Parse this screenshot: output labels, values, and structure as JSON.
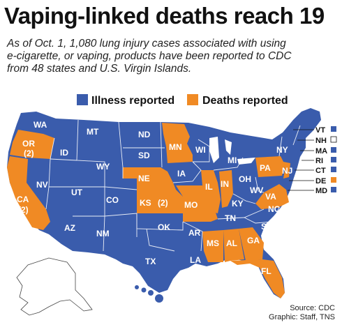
{
  "title": "Vaping-linked deaths reach 19",
  "subtitle": [
    "As of Oct. 1, 1,080 lung injury cases associated with using",
    "e-cigarette, or vaping, products have been reported to CDC",
    "from 48 states and U.S. Virgin Islands."
  ],
  "legend": [
    {
      "label": "Illness reported",
      "color": "#3a5cac"
    },
    {
      "label": "Deaths reported",
      "color": "#f08a24"
    }
  ],
  "colors": {
    "illness": "#3a5cac",
    "deaths": "#f08a24",
    "none": "#ffffff"
  },
  "states": [
    {
      "abbr": "WA",
      "status": "illness"
    },
    {
      "abbr": "OR",
      "status": "deaths",
      "count": "(2)"
    },
    {
      "abbr": "CA",
      "status": "deaths",
      "count": "(2)"
    },
    {
      "abbr": "ID",
      "status": "illness"
    },
    {
      "abbr": "NV",
      "status": "illness"
    },
    {
      "abbr": "MT",
      "status": "illness"
    },
    {
      "abbr": "WY",
      "status": "illness"
    },
    {
      "abbr": "UT",
      "status": "illness"
    },
    {
      "abbr": "AZ",
      "status": "illness"
    },
    {
      "abbr": "CO",
      "status": "illness"
    },
    {
      "abbr": "NM",
      "status": "illness"
    },
    {
      "abbr": "ND",
      "status": "illness"
    },
    {
      "abbr": "SD",
      "status": "illness"
    },
    {
      "abbr": "NE",
      "status": "deaths"
    },
    {
      "abbr": "KS",
      "status": "deaths",
      "count": "(2)"
    },
    {
      "abbr": "OK",
      "status": "illness"
    },
    {
      "abbr": "TX",
      "status": "illness"
    },
    {
      "abbr": "MN",
      "status": "deaths"
    },
    {
      "abbr": "IA",
      "status": "illness"
    },
    {
      "abbr": "MO",
      "status": "deaths"
    },
    {
      "abbr": "AR",
      "status": "illness"
    },
    {
      "abbr": "LA",
      "status": "illness"
    },
    {
      "abbr": "WI",
      "status": "illness"
    },
    {
      "abbr": "IL",
      "status": "deaths"
    },
    {
      "abbr": "MI",
      "status": "illness"
    },
    {
      "abbr": "IN",
      "status": "deaths"
    },
    {
      "abbr": "OH",
      "status": "illness"
    },
    {
      "abbr": "KY",
      "status": "illness"
    },
    {
      "abbr": "TN",
      "status": "illness"
    },
    {
      "abbr": "MS",
      "status": "deaths"
    },
    {
      "abbr": "AL",
      "status": "deaths"
    },
    {
      "abbr": "GA",
      "status": "deaths"
    },
    {
      "abbr": "FL",
      "status": "deaths"
    },
    {
      "abbr": "SC",
      "status": "illness"
    },
    {
      "abbr": "NC",
      "status": "illness"
    },
    {
      "abbr": "VA",
      "status": "deaths"
    },
    {
      "abbr": "WV",
      "status": "illness"
    },
    {
      "abbr": "PA",
      "status": "deaths"
    },
    {
      "abbr": "NY",
      "status": "illness"
    },
    {
      "abbr": "NJ",
      "status": "deaths"
    },
    {
      "abbr": "VT",
      "status": "illness"
    },
    {
      "abbr": "NH",
      "status": "none"
    },
    {
      "abbr": "MA",
      "status": "illness"
    },
    {
      "abbr": "RI",
      "status": "illness"
    },
    {
      "abbr": "CT",
      "status": "illness"
    },
    {
      "abbr": "DE",
      "status": "deaths"
    },
    {
      "abbr": "MD",
      "status": "illness"
    },
    {
      "abbr": "ME",
      "status": "illness"
    },
    {
      "abbr": "AK",
      "status": "none"
    },
    {
      "abbr": "HI",
      "status": "illness"
    }
  ],
  "source": [
    "Source: CDC",
    "Graphic: Staff, TNS"
  ]
}
